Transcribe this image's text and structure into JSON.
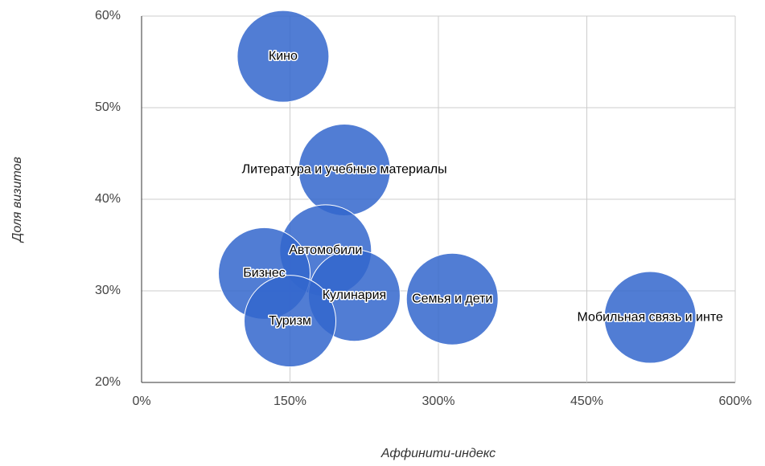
{
  "chart_data": {
    "type": "bubble",
    "xlabel": "Аффинити-индекс",
    "ylabel": "Доля визитов",
    "color": "#3366cc",
    "grid": true,
    "xlim": [
      0,
      600
    ],
    "xticks": [
      {
        "value": 0,
        "label": "0%"
      },
      {
        "value": 150,
        "label": "150%"
      },
      {
        "value": 300,
        "label": "300%"
      },
      {
        "value": 450,
        "label": "450%"
      },
      {
        "value": 600,
        "label": "600%"
      }
    ],
    "ylim": [
      20,
      60
    ],
    "yticks": [
      {
        "value": 20,
        "label": "20%"
      },
      {
        "value": 30,
        "label": "30%"
      },
      {
        "value": 40,
        "label": "40%"
      },
      {
        "value": 50,
        "label": "50%"
      },
      {
        "value": 60,
        "label": "60%"
      }
    ],
    "points": [
      {
        "label": "Кино",
        "x": 143,
        "y": 55.6
      },
      {
        "label": "Литература и учебные материалы",
        "x": 205,
        "y": 43.2
      },
      {
        "label": "Автомобили",
        "x": 186,
        "y": 34.4
      },
      {
        "label": "Бизнес",
        "x": 124,
        "y": 31.9
      },
      {
        "label": "Кулинария",
        "x": 215,
        "y": 29.5
      },
      {
        "label": "Семья и дети",
        "x": 314,
        "y": 29.1
      },
      {
        "label": "Мобильная связь и инте",
        "x": 514,
        "y": 27.1
      },
      {
        "label": "Туризм",
        "x": 150,
        "y": 26.7
      }
    ]
  }
}
